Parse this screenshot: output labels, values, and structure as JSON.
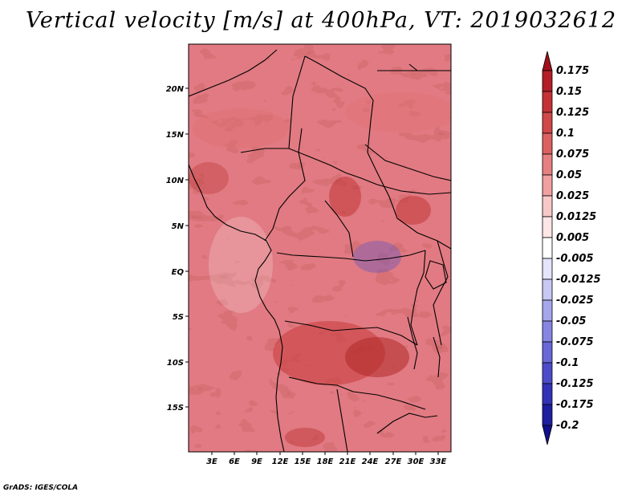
{
  "title": "Vertical velocity [m/s] at 400hPa, VT: 2019032612",
  "footer": "GrADS: IGES/COLA",
  "map": {
    "lat_labels": [
      "20N",
      "15N",
      "10N",
      "5N",
      "EQ",
      "5S",
      "10S",
      "15S"
    ],
    "lon_labels": [
      "3E",
      "6E",
      "9E",
      "12E",
      "15E",
      "18E",
      "21E",
      "24E",
      "27E",
      "30E",
      "33E"
    ]
  },
  "colorbar": {
    "labels": [
      "0.175",
      "0.15",
      "0.125",
      "0.1",
      "0.075",
      "0.05",
      "0.025",
      "0.0125",
      "0.005",
      "-0.005",
      "-0.0125",
      "-0.025",
      "-0.05",
      "-0.075",
      "-0.1",
      "-0.125",
      "-0.175",
      "-0.2"
    ],
    "colors": [
      "#a0101a",
      "#b41e26",
      "#c43236",
      "#d04848",
      "#dc6262",
      "#e68080",
      "#f0a0a0",
      "#f8c8c8",
      "#fde6e6",
      "#ffffff",
      "#e4e4fa",
      "#c8c8f4",
      "#a6a6ec",
      "#8686e2",
      "#6868d8",
      "#4c4cca",
      "#3232b8",
      "#1e1ea0",
      "#10108a"
    ]
  }
}
